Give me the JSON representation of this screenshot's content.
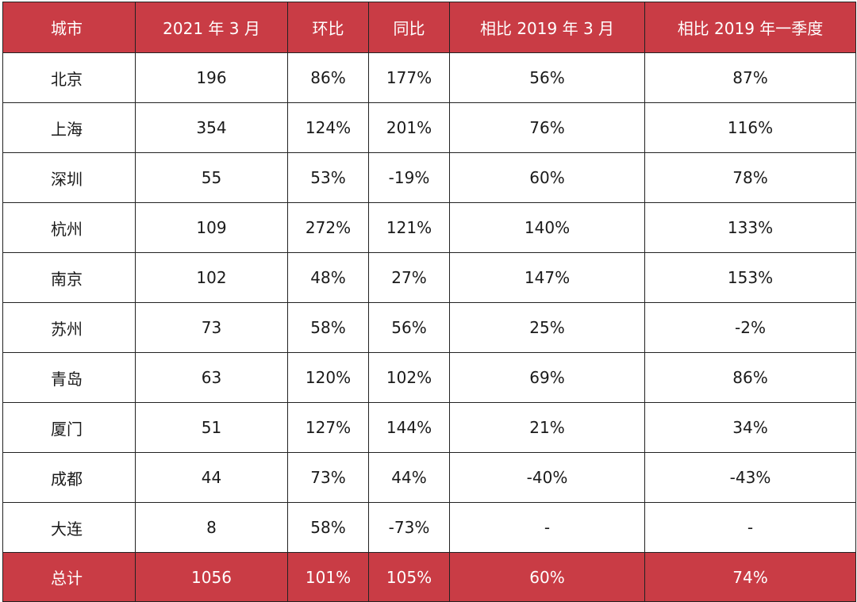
{
  "table": {
    "headers": [
      "城市",
      "2021 年 3 月",
      "环比",
      "同比",
      "相比 2019 年  3 月",
      "相比 2019 年一季度"
    ],
    "rows": [
      [
        "北京",
        "196",
        "86%",
        "177%",
        "56%",
        "87%"
      ],
      [
        "上海",
        "354",
        "124%",
        "201%",
        "76%",
        "116%"
      ],
      [
        "深圳",
        "55",
        "53%",
        "-19%",
        "60%",
        "78%"
      ],
      [
        "杭州",
        "109",
        "272%",
        "121%",
        "140%",
        "133%"
      ],
      [
        "南京",
        "102",
        "48%",
        "27%",
        "147%",
        "153%"
      ],
      [
        "苏州",
        "73",
        "58%",
        "56%",
        "25%",
        "-2%"
      ],
      [
        "青岛",
        "63",
        "120%",
        "102%",
        "69%",
        "86%"
      ],
      [
        "厦门",
        "51",
        "127%",
        "144%",
        "21%",
        "34%"
      ],
      [
        "成都",
        "44",
        "73%",
        "44%",
        "-40%",
        "-43%"
      ],
      [
        "大连",
        "8",
        "58%",
        "-73%",
        "-",
        "-"
      ]
    ],
    "total": [
      "总计",
      "1056",
      "101%",
      "105%",
      "60%",
      "74%"
    ]
  },
  "colors": {
    "header_background": "#c93c45",
    "header_text": "#ffffff",
    "border": "#222222",
    "body_text": "#1a1a1a"
  }
}
